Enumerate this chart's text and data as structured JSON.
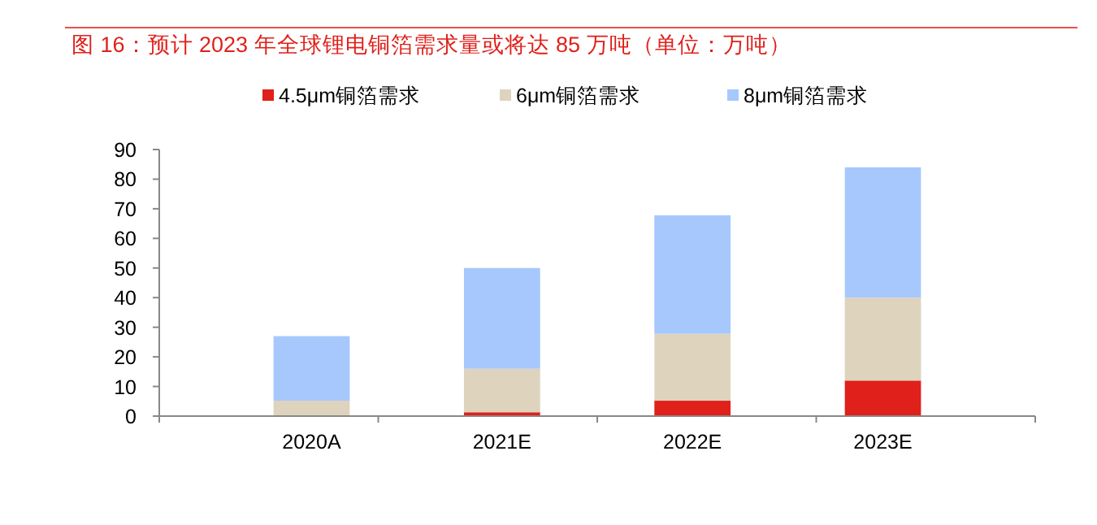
{
  "chart_data": {
    "type": "bar",
    "title": "图 16：预计 2023 年全球锂电铜箔需求量或将达 85 万吨（单位：万吨）",
    "categories": [
      "2020A",
      "2021E",
      "2022E",
      "2023E"
    ],
    "stacked": true,
    "legend": "top",
    "series": [
      {
        "name": "4.5μm铜箔需求",
        "color": "#e0201a",
        "values": [
          0.2,
          1.3,
          5.2,
          12
        ]
      },
      {
        "name": "6μm铜箔需求",
        "color": "#ded3bd",
        "values": [
          5,
          14.7,
          22.6,
          28
        ]
      },
      {
        "name": "8μm铜箔需求",
        "color": "#a6c8fd",
        "values": [
          21.8,
          34,
          40,
          44
        ]
      }
    ],
    "ylim": [
      0,
      90
    ],
    "yticks": [
      0,
      10,
      20,
      30,
      40,
      50,
      60,
      70,
      80,
      90
    ]
  }
}
